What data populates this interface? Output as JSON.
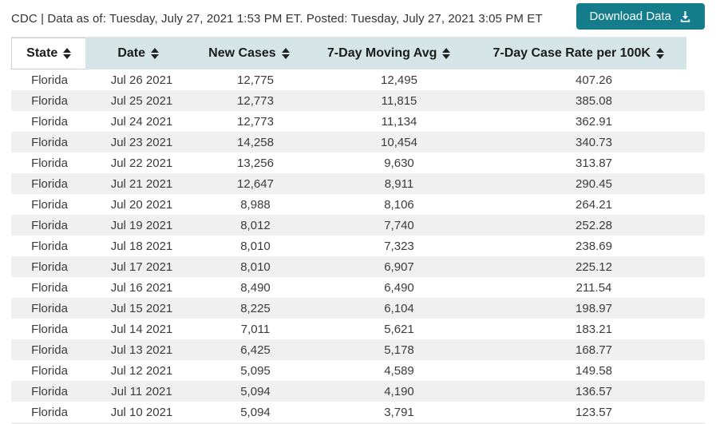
{
  "topbar": {
    "status_line": "CDC | Data as of: Tuesday, July 27, 2021 1:53 PM ET. Posted: Tuesday, July 27, 2021 3:05 PM ET",
    "download_label": "Download Data"
  },
  "icons": {
    "download": "download-tray-arrow",
    "sort": "up-down-triangles"
  },
  "colors": {
    "accent_teal": "#147d8c",
    "header_bg": "#d5e5e7",
    "alt_row_bg": "#f0f0f0"
  },
  "table": {
    "columns": [
      {
        "key": "state",
        "label": "State",
        "active": true
      },
      {
        "key": "date",
        "label": "Date",
        "active": false
      },
      {
        "key": "new-cases",
        "label": "New Cases",
        "active": false
      },
      {
        "key": "moving-avg",
        "label": "7-Day Moving Avg",
        "active": false
      },
      {
        "key": "case-rate",
        "label": "7-Day Case Rate per 100K",
        "active": false
      }
    ],
    "rows": [
      [
        "Florida",
        "Jul 26 2021",
        "12,775",
        "12,495",
        "407.26"
      ],
      [
        "Florida",
        "Jul 25 2021",
        "12,773",
        "11,815",
        "385.08"
      ],
      [
        "Florida",
        "Jul 24 2021",
        "12,773",
        "11,134",
        "362.91"
      ],
      [
        "Florida",
        "Jul 23 2021",
        "14,258",
        "10,454",
        "340.73"
      ],
      [
        "Florida",
        "Jul 22 2021",
        "13,256",
        "9,630",
        "313.87"
      ],
      [
        "Florida",
        "Jul 21 2021",
        "12,647",
        "8,911",
        "290.45"
      ],
      [
        "Florida",
        "Jul 20 2021",
        "8,988",
        "8,106",
        "264.21"
      ],
      [
        "Florida",
        "Jul 19 2021",
        "8,012",
        "7,740",
        "252.28"
      ],
      [
        "Florida",
        "Jul 18 2021",
        "8,010",
        "7,323",
        "238.69"
      ],
      [
        "Florida",
        "Jul 17 2021",
        "8,010",
        "6,907",
        "225.12"
      ],
      [
        "Florida",
        "Jul 16 2021",
        "8,490",
        "6,490",
        "211.54"
      ],
      [
        "Florida",
        "Jul 15 2021",
        "8,225",
        "6,104",
        "198.97"
      ],
      [
        "Florida",
        "Jul 14 2021",
        "7,011",
        "5,621",
        "183.21"
      ],
      [
        "Florida",
        "Jul 13 2021",
        "6,425",
        "5,178",
        "168.77"
      ],
      [
        "Florida",
        "Jul 12 2021",
        "5,095",
        "4,589",
        "149.58"
      ],
      [
        "Florida",
        "Jul 11 2021",
        "5,094",
        "4,190",
        "136.57"
      ],
      [
        "Florida",
        "Jul 10 2021",
        "5,094",
        "3,791",
        "123.57"
      ]
    ]
  }
}
